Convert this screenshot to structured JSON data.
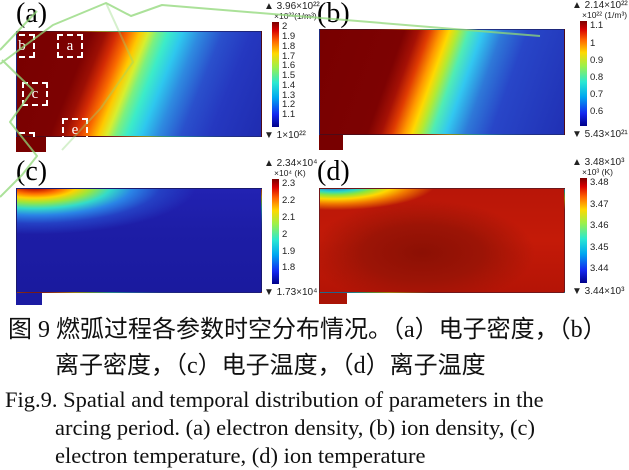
{
  "figure": {
    "panels": [
      {
        "label": "(a)",
        "quantity": "electron density",
        "markers": [
          "b",
          "a",
          "c",
          "e",
          "d"
        ],
        "colorbar": {
          "max_label": "▲ 3.96×10²²",
          "unit": "×10²²(1/m³)",
          "ticks": [
            "2",
            "1.9",
            "1.8",
            "1.7",
            "1.6",
            "1.5",
            "1.4",
            "1.3",
            "1.2",
            "1.1"
          ],
          "min_label": "▼ 1×10²²"
        }
      },
      {
        "label": "(b)",
        "quantity": "ion density",
        "colorbar": {
          "max_label": "▲ 2.14×10²²",
          "unit": "×10²² (1/m³)",
          "ticks": [
            "1.1",
            "1",
            "0.9",
            "0.8",
            "0.7",
            "0.6"
          ],
          "min_label": "▼ 5.43×10²¹"
        }
      },
      {
        "label": "(c)",
        "quantity": "electron temperature",
        "colorbar": {
          "max_label": "▲ 2.34×10⁴",
          "unit": "×10⁴ (K)",
          "ticks": [
            "2.3",
            "2.2",
            "2.1",
            "2",
            "1.9",
            "1.8"
          ],
          "min_label": "▼ 1.73×10⁴"
        }
      },
      {
        "label": "(d)",
        "quantity": "ion temperature",
        "colorbar": {
          "max_label": "▲ 3.48×10³",
          "unit": "×10³ (K)",
          "ticks": [
            "3.48",
            "3.47",
            "3.46",
            "3.45",
            "3.44"
          ],
          "min_label": "▼ 3.44×10³"
        }
      }
    ]
  },
  "caption_zh": {
    "line1": "图 9 燃弧过程各参数时空分布情况。（a）电子密度，（b）",
    "line2": "离子密度，（c）电子温度，（d）离子温度"
  },
  "caption_en": {
    "line1": "Fig.9. Spatial and temporal distribution of parameters in the",
    "line2": "arcing period. (a) electron density, (b) ion density, (c)",
    "line3": "electron temperature, (d) ion temperature"
  },
  "chart_data": [
    {
      "type": "heatmap",
      "panel": "a",
      "title": "电子密度 / electron density",
      "unit": "1/m³",
      "scale_factor": "×10²²",
      "max_value": 3.96e+22,
      "min_value": 1e+22,
      "colorbar_ticks": [
        2,
        1.9,
        1.8,
        1.7,
        1.6,
        1.5,
        1.4,
        1.3,
        1.2,
        1.1
      ],
      "colormap": "jet",
      "legend_position": "right",
      "distribution": "dark-red high-density region over left ~35% of an L-shaped domain, tilted rainbow transition band near mid-width, blue low-density region on right; white dashed marker boxes b, a, c, e, d on the red region"
    },
    {
      "type": "heatmap",
      "panel": "b",
      "title": "离子密度 / ion density",
      "unit": "1/m³",
      "scale_factor": "×10²²",
      "max_value": 2.14e+22,
      "min_value": 5.43e+21,
      "colorbar_ticks": [
        1.1,
        1,
        0.9,
        0.8,
        0.7,
        0.6
      ],
      "colormap": "jet",
      "legend_position": "right",
      "distribution": "dark-red high-density region over left ~35-40%, S-shaped rainbow transition, blue low-density right side; bottom-left step of domain dark red"
    },
    {
      "type": "heatmap",
      "panel": "c",
      "title": "电子温度 / electron temperature",
      "unit": "K",
      "scale_factor": "×10⁴",
      "max_value": 23400,
      "min_value": 17300,
      "colorbar_ticks": [
        2.3,
        2.2,
        2.1,
        2,
        1.9,
        1.8
      ],
      "colormap": "jet",
      "legend_position": "right",
      "distribution": "hot spot (red-orange-yellow) hugging top-left corner fading through green/cyan; remainder of domain uniform dark blue near minimum"
    },
    {
      "type": "heatmap",
      "panel": "d",
      "title": "离子温度 / ion temperature",
      "unit": "K",
      "scale_factor": "×10³",
      "max_value": 3480,
      "min_value": 3440,
      "colorbar_ticks": [
        3.48,
        3.47,
        3.46,
        3.45,
        3.44
      ],
      "colormap": "jet",
      "legend_position": "right",
      "distribution": "domain almost entirely red near maximum with slightly darker core left of center; small cool patch (blue-cyan-green-yellow) at top-left corner"
    }
  ]
}
